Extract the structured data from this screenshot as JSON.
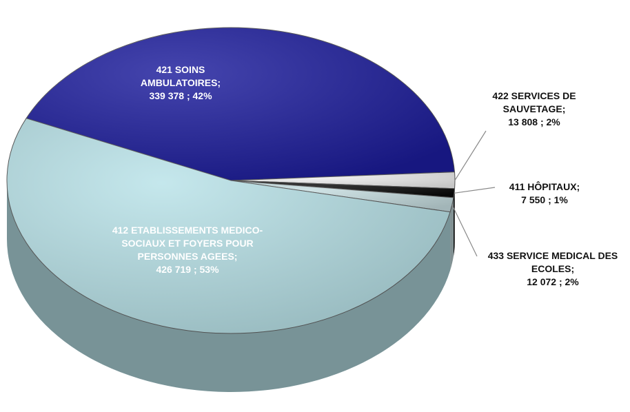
{
  "chart_data": {
    "type": "pie",
    "categories": [
      "421 SOINS AMBULATOIRES;",
      "422 SERVICES DE SAUVETAGE;",
      "411 HÔPITAUX;",
      "433 SERVICE MEDICAL DES ECOLES;",
      "412 ETABLISSEMENTS MEDICO-SOCIAUX ET FOYERS POUR PERSONNES AGEES;"
    ],
    "values": [
      339378,
      13808,
      7550,
      12072,
      426719
    ],
    "value_labels": [
      "339 378 ; 42%",
      "13 808 ; 2%",
      "7 550 ; 1%",
      "12 072 ; 2%",
      "426 719 ; 53%"
    ],
    "colors": [
      "#1c1c9c",
      "#f2f2f2",
      "#0a0a0a",
      "#c6dde0",
      "#b8e2e8"
    ]
  }
}
